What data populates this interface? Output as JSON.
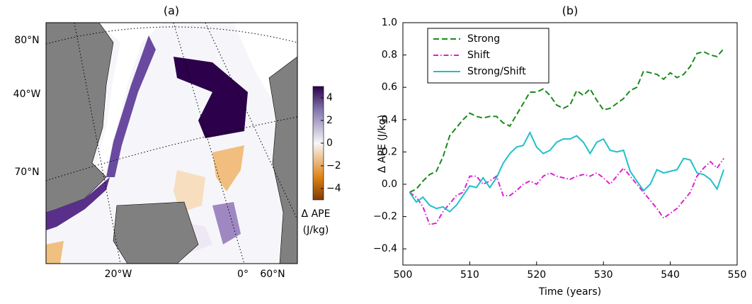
{
  "chart_data": [
    {
      "type": "map",
      "title": "(a)",
      "lat_labels": [
        "80°N",
        "70°N",
        "60°N"
      ],
      "lon_labels": [
        "40°W",
        "20°W",
        "0°"
      ],
      "colorbar": {
        "lim": [
          -5,
          5
        ],
        "ticks": [
          4,
          2,
          0,
          {
            "value": -2,
            "label": "−2"
          },
          {
            "value": -4,
            "label": "−4"
          }
        ],
        "label": [
          "Δ APE",
          "(J/kg)"
        ]
      }
    },
    {
      "type": "line",
      "title": "(b)",
      "xlabel": "Time (years)",
      "ylabel": "Δ APE (J/kg)",
      "xlim": [
        500,
        550
      ],
      "xticks": [
        500,
        510,
        520,
        530,
        540,
        550
      ],
      "ylim": [
        -0.5,
        1.0
      ],
      "yticks": [
        {
          "value": -0.4,
          "label": "−0.4"
        },
        {
          "value": -0.2,
          "label": "−0.2"
        },
        {
          "value": 0,
          "label": "0.0"
        },
        0.2,
        0.4,
        0.6,
        0.8,
        {
          "value": 1,
          "label": "1.0"
        }
      ],
      "legend": "upper left",
      "x": [
        501,
        502,
        503,
        504,
        505,
        506,
        507,
        508,
        509,
        510,
        511,
        512,
        513,
        514,
        515,
        516,
        517,
        518,
        519,
        520,
        521,
        522,
        523,
        524,
        525,
        526,
        527,
        528,
        529,
        530,
        531,
        532,
        533,
        534,
        535,
        536,
        537,
        538,
        539,
        540,
        541,
        542,
        543,
        544,
        545,
        546,
        547,
        548
      ],
      "series": [
        {
          "name": "Strong",
          "color": "#1a8a1a",
          "linestyle": "--",
          "values": [
            -0.05,
            -0.03,
            0.02,
            0.06,
            0.08,
            0.17,
            0.3,
            0.35,
            0.4,
            0.44,
            0.42,
            0.41,
            0.42,
            0.42,
            0.38,
            0.36,
            0.43,
            0.5,
            0.57,
            0.57,
            0.59,
            0.55,
            0.49,
            0.47,
            0.49,
            0.58,
            0.55,
            0.59,
            0.52,
            0.46,
            0.47,
            0.5,
            0.53,
            0.58,
            0.6,
            0.7,
            0.69,
            0.68,
            0.65,
            0.69,
            0.66,
            0.68,
            0.73,
            0.81,
            0.82,
            0.8,
            0.79,
            0.84
          ]
        },
        {
          "name": "Shift",
          "color": "#e020d0",
          "linestyle": "-.",
          "values": [
            -0.05,
            -0.08,
            -0.14,
            -0.25,
            -0.24,
            -0.17,
            -0.12,
            -0.07,
            -0.05,
            0.05,
            0.05,
            0.0,
            0.02,
            0.05,
            -0.07,
            -0.07,
            -0.04,
            0.0,
            0.02,
            0.0,
            0.05,
            0.07,
            0.05,
            0.04,
            0.03,
            0.05,
            0.06,
            0.05,
            0.07,
            0.04,
            0.0,
            0.05,
            0.1,
            0.05,
            0.0,
            -0.05,
            -0.1,
            -0.15,
            -0.21,
            -0.18,
            -0.15,
            -0.1,
            -0.05,
            0.05,
            0.1,
            0.14,
            0.1,
            0.16
          ]
        },
        {
          "name": "Strong/Shift",
          "color": "#20c0c8",
          "linestyle": "-",
          "values": [
            -0.05,
            -0.11,
            -0.08,
            -0.13,
            -0.15,
            -0.14,
            -0.17,
            -0.13,
            -0.07,
            -0.01,
            -0.02,
            0.04,
            -0.02,
            0.04,
            0.13,
            0.19,
            0.23,
            0.24,
            0.32,
            0.23,
            0.19,
            0.21,
            0.26,
            0.28,
            0.28,
            0.3,
            0.26,
            0.19,
            0.26,
            0.28,
            0.21,
            0.2,
            0.21,
            0.08,
            0.02,
            -0.04,
            0.0,
            0.09,
            0.07,
            0.08,
            0.09,
            0.16,
            0.15,
            0.07,
            0.06,
            0.03,
            -0.03,
            0.09
          ]
        }
      ]
    }
  ]
}
